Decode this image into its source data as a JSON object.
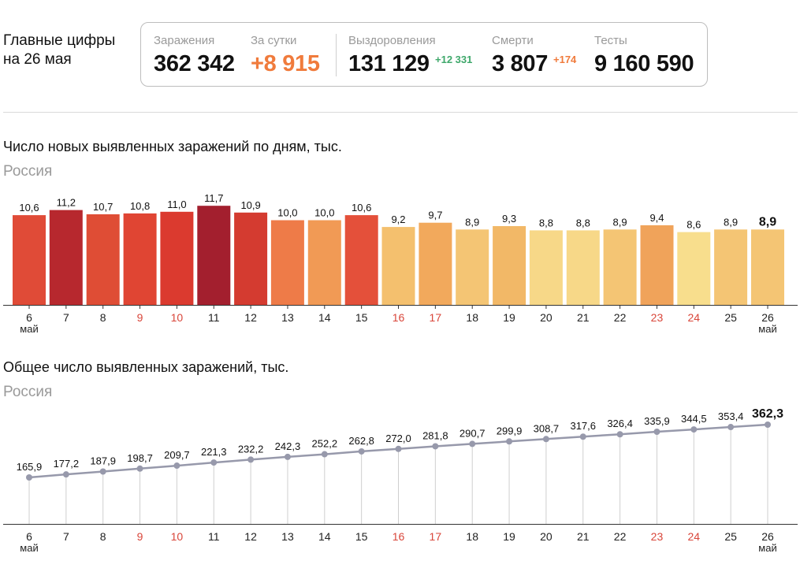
{
  "headline": {
    "line1": "Главные цифры",
    "line2": "на 26 мая"
  },
  "stats": {
    "infections": {
      "label": "Заражения",
      "value": "362 342"
    },
    "daily": {
      "label": "За сутки",
      "value": "+8 915"
    },
    "recovered": {
      "label": "Выздоровления",
      "value": "131 129",
      "delta": "+12 331"
    },
    "deaths": {
      "label": "Смерти",
      "value": "3 807",
      "delta": "+174"
    },
    "tests": {
      "label": "Тесты",
      "value": "9 160 590"
    }
  },
  "colors": {
    "weekend_label": "#d9463a",
    "line": "#9799ab",
    "grid": "#cfcfcf",
    "axis": "#333333"
  },
  "chart_data": [
    {
      "type": "bar",
      "title": "Число новых выявленных заражений по дням, тыс.",
      "subtitle": "Россия",
      "categories": [
        "6",
        "7",
        "8",
        "9",
        "10",
        "11",
        "12",
        "13",
        "14",
        "15",
        "16",
        "17",
        "18",
        "19",
        "20",
        "21",
        "22",
        "23",
        "24",
        "25",
        "26"
      ],
      "month_labels": {
        "first": "май",
        "last": "май"
      },
      "weekend_categories": [
        "9",
        "10",
        "16",
        "17",
        "23",
        "24"
      ],
      "values": [
        10.6,
        11.2,
        10.7,
        10.8,
        11.0,
        11.7,
        10.9,
        10.0,
        10.0,
        10.6,
        9.2,
        9.7,
        8.9,
        9.3,
        8.8,
        8.8,
        8.9,
        9.4,
        8.6,
        8.9,
        8.9
      ],
      "value_labels": [
        "10,6",
        "11,2",
        "10,7",
        "10,8",
        "11,0",
        "11,7",
        "10,9",
        "10,0",
        "10,0",
        "10,6",
        "9,2",
        "9,7",
        "8,9",
        "9,3",
        "8,8",
        "8,8",
        "8,9",
        "9,4",
        "8,6",
        "8,9",
        "8,9"
      ],
      "bar_colors": [
        "#e04b37",
        "#b7282e",
        "#df4d35",
        "#e04533",
        "#db3a2f",
        "#a31f2e",
        "#d43b30",
        "#ee7b48",
        "#f19a55",
        "#e4503a",
        "#f4c06e",
        "#f2a95c",
        "#f4c574",
        "#f2b867",
        "#f7d888",
        "#f7d888",
        "#f4c574",
        "#f0a35a",
        "#f8de8d",
        "#f4c574",
        "#f4c574"
      ],
      "ylim": [
        0,
        12
      ]
    },
    {
      "type": "line",
      "title": "Общее число выявленных заражений, тыс.",
      "subtitle": "Россия",
      "categories": [
        "6",
        "7",
        "8",
        "9",
        "10",
        "11",
        "12",
        "13",
        "14",
        "15",
        "16",
        "17",
        "18",
        "19",
        "20",
        "21",
        "22",
        "23",
        "24",
        "25",
        "26"
      ],
      "month_labels": {
        "first": "май",
        "last": "май"
      },
      "weekend_categories": [
        "9",
        "10",
        "16",
        "17",
        "23",
        "24"
      ],
      "values": [
        165.9,
        177.2,
        187.9,
        198.7,
        209.7,
        221.3,
        232.2,
        242.3,
        252.2,
        262.8,
        272.0,
        281.8,
        290.7,
        299.9,
        308.7,
        317.6,
        326.4,
        335.9,
        344.5,
        353.4,
        362.3
      ],
      "value_labels": [
        "165,9",
        "177,2",
        "187,9",
        "198,7",
        "209,7",
        "221,3",
        "232,2",
        "242,3",
        "252,2",
        "262,8",
        "272,0",
        "281,8",
        "290,7",
        "299,9",
        "308,7",
        "317,6",
        "326,4",
        "335,9",
        "344,5",
        "353,4",
        "362,3"
      ],
      "ylim": [
        0,
        362.3
      ]
    }
  ]
}
